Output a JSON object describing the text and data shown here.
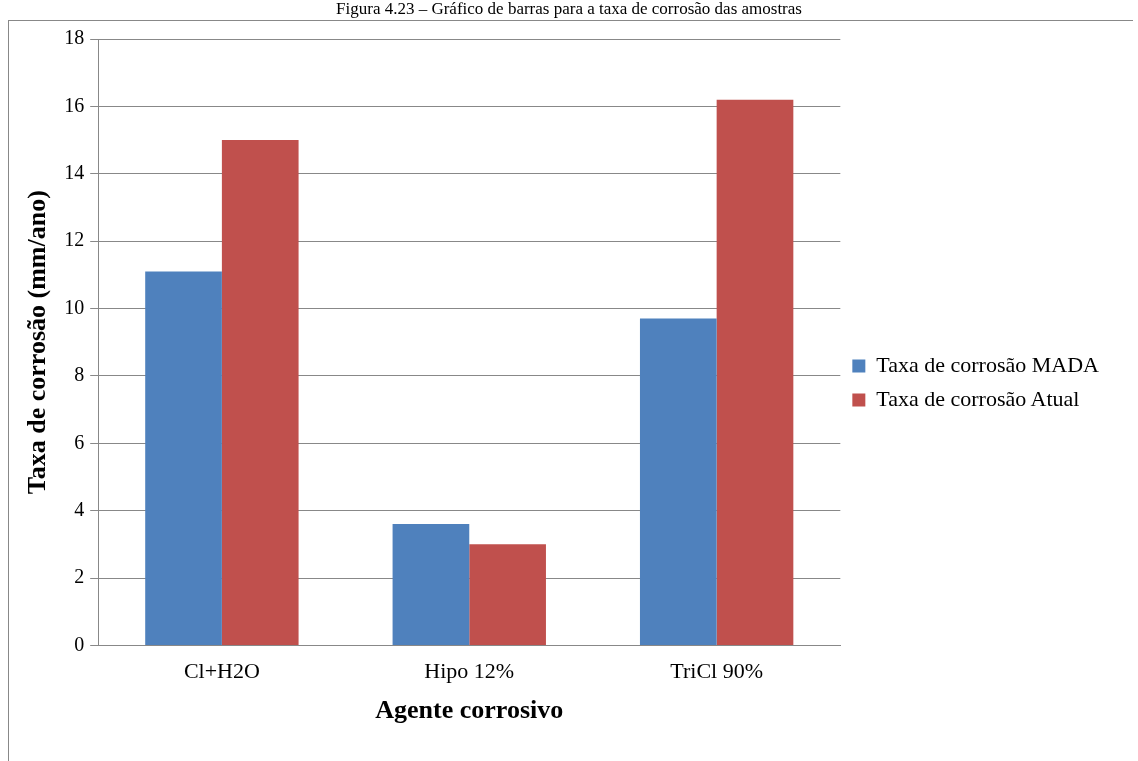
{
  "chart_data": {
    "type": "bar",
    "title": "Figura 4.23 – Gráfico de barras para a taxa de corrosão das amostras",
    "xlabel": "Agente corrosivo",
    "ylabel": "Taxa de corrosão (mm/ano)",
    "categories": [
      "Cl+H2O",
      "Hipo 12%",
      "TriCl 90%"
    ],
    "series": [
      {
        "name": "Taxa de corrosão MADA",
        "color": "#4f81bd",
        "values": [
          11.1,
          3.6,
          9.7
        ]
      },
      {
        "name": "Taxa de corrosão Atual",
        "color": "#c0504d",
        "values": [
          15.0,
          3.0,
          16.2
        ]
      }
    ],
    "ylim": [
      0,
      18
    ],
    "yticks": [
      0,
      2,
      4,
      6,
      8,
      10,
      12,
      14,
      16,
      18
    ],
    "grid": "y",
    "legend": "right"
  }
}
